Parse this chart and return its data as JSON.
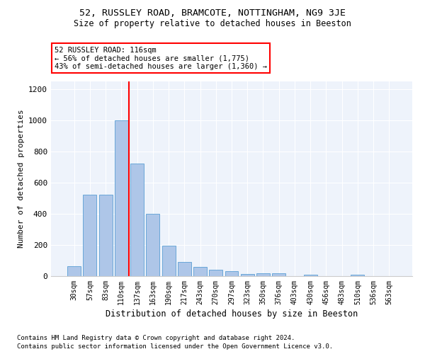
{
  "title1": "52, RUSSLEY ROAD, BRAMCOTE, NOTTINGHAM, NG9 3JE",
  "title2": "Size of property relative to detached houses in Beeston",
  "xlabel": "Distribution of detached houses by size in Beeston",
  "ylabel": "Number of detached properties",
  "categories": [
    "30sqm",
    "57sqm",
    "83sqm",
    "110sqm",
    "137sqm",
    "163sqm",
    "190sqm",
    "217sqm",
    "243sqm",
    "270sqm",
    "297sqm",
    "323sqm",
    "350sqm",
    "376sqm",
    "403sqm",
    "430sqm",
    "456sqm",
    "483sqm",
    "510sqm",
    "536sqm",
    "563sqm"
  ],
  "values": [
    65,
    525,
    525,
    1000,
    725,
    400,
    195,
    90,
    60,
    40,
    30,
    15,
    20,
    20,
    0,
    10,
    0,
    0,
    10,
    0,
    0
  ],
  "bar_color": "#aec6e8",
  "bar_edge_color": "#5a9fd4",
  "vline_x_index": 3,
  "vline_color": "red",
  "annotation_line1": "52 RUSSLEY ROAD: 116sqm",
  "annotation_line2": "← 56% of detached houses are smaller (1,775)",
  "annotation_line3": "43% of semi-detached houses are larger (1,360) →",
  "annotation_box_color": "white",
  "annotation_box_edge": "red",
  "ylim": [
    0,
    1250
  ],
  "yticks": [
    0,
    200,
    400,
    600,
    800,
    1000,
    1200
  ],
  "background_color": "#eef3fb",
  "footer1": "Contains HM Land Registry data © Crown copyright and database right 2024.",
  "footer2": "Contains public sector information licensed under the Open Government Licence v3.0."
}
